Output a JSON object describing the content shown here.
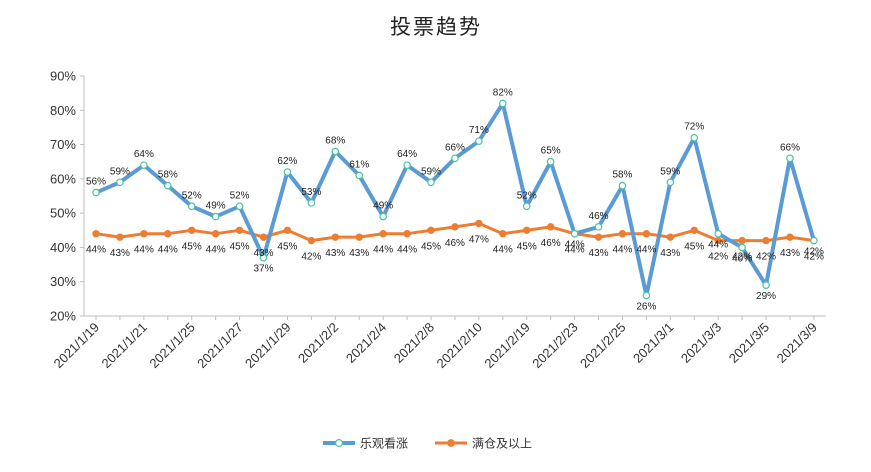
{
  "chart_data": {
    "type": "line",
    "title": "投票趋势",
    "xlabel": "",
    "ylabel": "",
    "ylim": [
      20,
      90
    ],
    "yticks": [
      "20%",
      "30%",
      "40%",
      "50%",
      "60%",
      "70%",
      "80%",
      "90%"
    ],
    "grid": false,
    "legend_position": "bottom",
    "x_tick_labels": [
      "2021/1/19",
      "2021/1/21",
      "2021/1/25",
      "2021/1/27",
      "2021/1/29",
      "2021/2/2",
      "2021/2/4",
      "2021/2/8",
      "2021/2/10",
      "2021/2/19",
      "2021/2/23",
      "2021/2/25",
      "2021/3/1",
      "2021/3/3",
      "2021/3/5",
      "2021/3/9"
    ],
    "series": [
      {
        "name": "乐观看涨",
        "color": "#5b9bd5",
        "marker": "circle-open",
        "values": [
          56,
          59,
          64,
          58,
          52,
          49,
          52,
          37,
          62,
          53,
          68,
          61,
          49,
          64,
          59,
          66,
          71,
          82,
          52,
          65,
          44,
          46,
          58,
          26,
          59,
          72,
          44,
          40,
          29,
          66,
          42
        ],
        "labels": [
          "56%",
          "59%",
          "64%",
          "58%",
          "52%",
          "49%",
          "52%",
          "37%",
          "62%",
          "53%",
          "68%",
          "61%",
          "49%",
          "64%",
          "59%",
          "66%",
          "71%",
          "82%",
          "52%",
          "65%",
          "44%",
          "46%",
          "58%",
          "26%",
          "59%",
          "72%",
          "44%",
          "40%",
          "29%",
          "66%",
          "42%"
        ]
      },
      {
        "name": "满仓及以上",
        "color": "#ed7d31",
        "marker": "circle",
        "values": [
          44,
          43,
          44,
          44,
          45,
          44,
          45,
          43,
          45,
          42,
          43,
          43,
          44,
          44,
          45,
          46,
          47,
          44,
          45,
          46,
          44,
          43,
          44,
          44,
          43,
          45,
          42,
          42,
          42,
          43,
          42
        ],
        "labels": [
          "44%",
          "43%",
          "44%",
          "44%",
          "45%",
          "44%",
          "45%",
          "43%",
          "45%",
          "42%",
          "43%",
          "43%",
          "44%",
          "44%",
          "45%",
          "46%",
          "47%",
          "44%",
          "45%",
          "46%",
          "44%",
          "43%",
          "44%",
          "44%",
          "43%",
          "45%",
          "42%",
          "42%",
          "42%",
          "43%",
          "42%"
        ]
      }
    ]
  }
}
